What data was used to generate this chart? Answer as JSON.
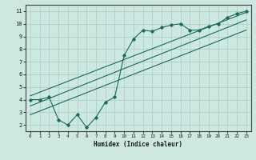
{
  "xlabel": "Humidex (Indice chaleur)",
  "xlim": [
    -0.5,
    23.5
  ],
  "ylim": [
    1.5,
    11.5
  ],
  "xticks": [
    0,
    1,
    2,
    3,
    4,
    5,
    6,
    7,
    8,
    9,
    10,
    11,
    12,
    13,
    14,
    15,
    16,
    17,
    18,
    19,
    20,
    21,
    22,
    23
  ],
  "yticks": [
    2,
    3,
    4,
    5,
    6,
    7,
    8,
    9,
    10,
    11
  ],
  "bg_color": "#cce8e0",
  "grid_color": "#a8ccc4",
  "line_color": "#1a6b5a",
  "jagged_x": [
    0,
    1,
    2,
    3,
    4,
    5,
    6,
    7,
    8,
    9,
    10,
    11,
    12,
    13,
    14,
    15,
    16,
    17,
    18,
    19,
    20,
    21,
    22,
    23
  ],
  "jagged_y": [
    4.0,
    4.0,
    4.2,
    2.4,
    2.0,
    2.8,
    1.8,
    2.6,
    3.8,
    4.2,
    7.5,
    8.8,
    9.5,
    9.4,
    9.7,
    9.9,
    10.0,
    9.5,
    9.5,
    9.8,
    10.0,
    10.5,
    10.8,
    11.0
  ],
  "line1_x": [
    0,
    23
  ],
  "line1_y": [
    4.3,
    10.9
  ],
  "line2_x": [
    0,
    23
  ],
  "line2_y": [
    3.5,
    10.3
  ],
  "line3_x": [
    0,
    23
  ],
  "line3_y": [
    2.8,
    9.5
  ]
}
